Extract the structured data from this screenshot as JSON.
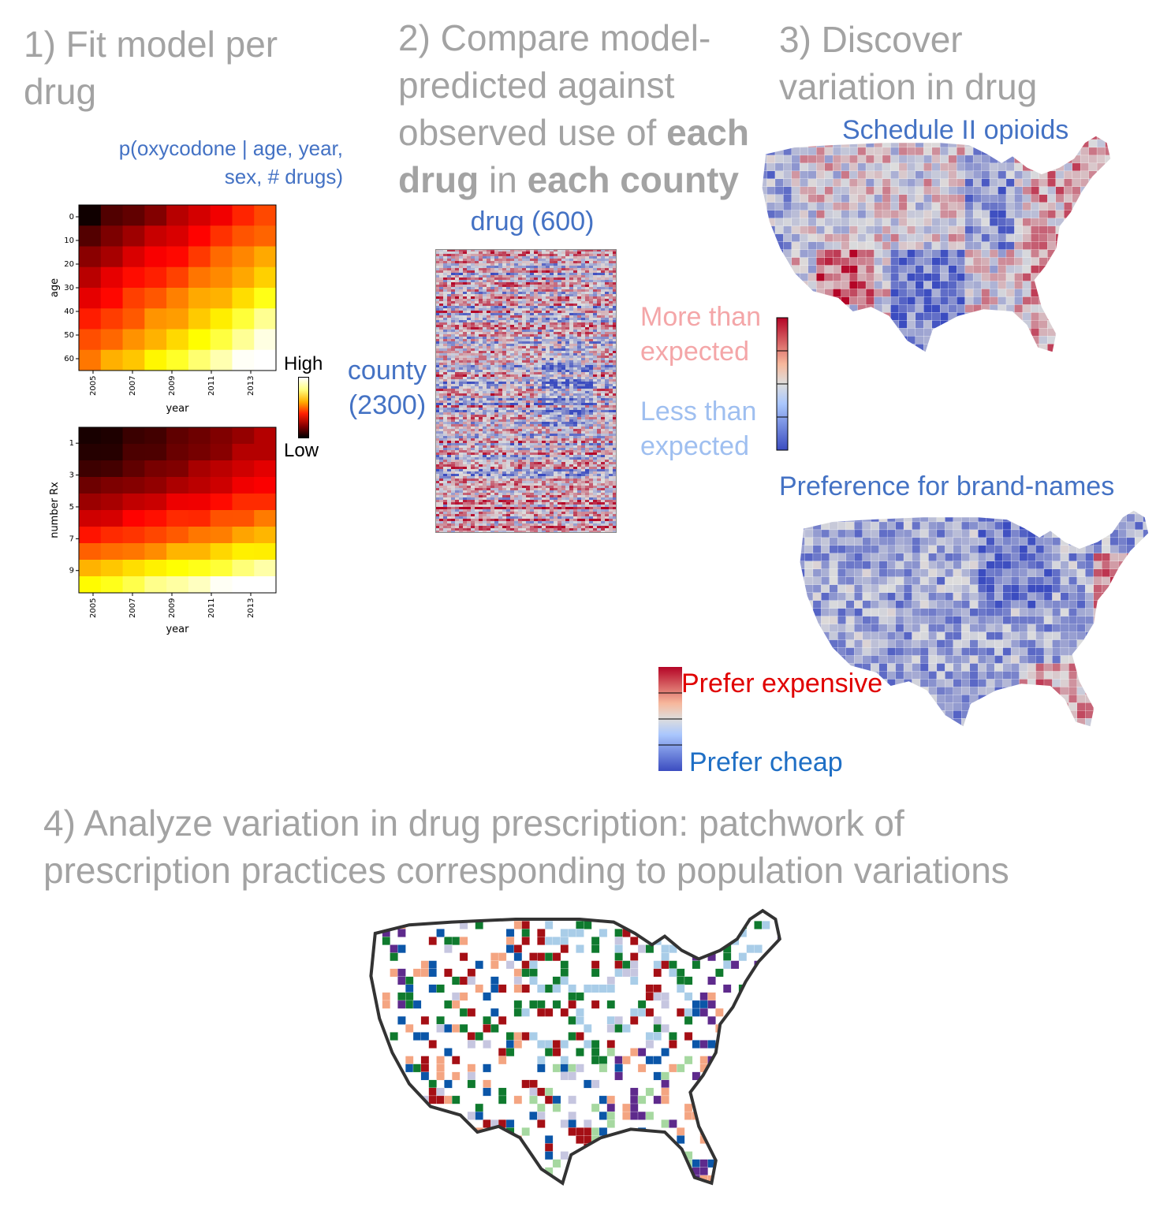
{
  "steps": {
    "s1": "1) Fit model per drug",
    "s2_a": "2) Compare model-predicted against observed use of ",
    "s2_b": "each drug",
    "s2_c": " in ",
    "s2_d": "each county",
    "s3": "3) Discover variation in drug prescription",
    "s4": "4) Analyze variation in drug prescription: patchwork of prescription practices corresponding to population variations"
  },
  "model": {
    "formula_line1": "p(oxycodone | age, year,",
    "formula_line2": "sex, # drugs)",
    "colorbar_high": "High",
    "colorbar_low": "Low"
  },
  "chart_data": [
    {
      "type": "heatmap",
      "xlabel": "year",
      "ylabel": "age",
      "x_ticks": [
        "2005",
        "2007",
        "2009",
        "2011",
        "2013"
      ],
      "y_ticks": [
        "0",
        "10",
        "20",
        "30",
        "40",
        "50",
        "60"
      ],
      "colormap": "hot"
    },
    {
      "type": "heatmap",
      "xlabel": "year",
      "ylabel": "number Rx",
      "x_ticks": [
        "2005",
        "2007",
        "2009",
        "2011",
        "2013"
      ],
      "y_ticks": [
        "1",
        "3",
        "5",
        "7",
        "9"
      ],
      "colormap": "hot"
    },
    {
      "type": "heatmap",
      "xlabel": "drug (600)",
      "ylabel_line1": "county",
      "ylabel_line2": "(2300)",
      "colormap": "coolwarm"
    }
  ],
  "legend_expected": {
    "more_line1": "More than",
    "more_line2": "expected",
    "less_line1": "Less than",
    "less_line2": "expected",
    "more_color": "#f4a6a8",
    "less_color": "#9fbff0"
  },
  "maps": {
    "opioids_title": "Schedule II opioids",
    "brand_title": "Preference for brand-names",
    "prefer_expensive": "Prefer expensive",
    "prefer_cheap": "Prefer cheap",
    "expensive_color": "#e00000",
    "cheap_color": "#1f6fc5"
  },
  "cluster_colors": [
    "#0f7a2e",
    "#0b56a8",
    "#a50f15",
    "#f4a582",
    "#5e2a8c",
    "#c6c6e0",
    "#a6d8a0",
    "#a9cde8"
  ]
}
